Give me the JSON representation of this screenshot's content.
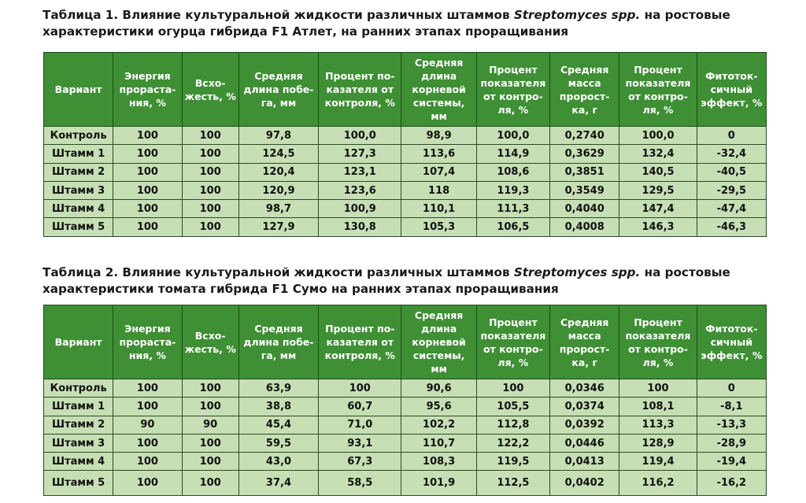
{
  "table1": {
    "caption_pre": "Таблица 1. Влияние культуральной жидкости различных штаммов ",
    "caption_italic": "Streptomyces spp.",
    "caption_post": " на ростовые характеристики огурца гибрида F1 Атлет, на ранних этапах проращивания",
    "headers": [
      "Вариант",
      "Энергия прораста-ния, %",
      "Всхо-жесть, %",
      "Средняя длина побе-га, мм",
      "Процент по-казателя от контроля, %",
      "Средняя длина корневой системы, мм",
      "Процент показателя от контро-ля, %",
      "Средняя масса пророст-ка, г",
      "Процент показателя от контро-ля, %",
      "Фитоток-сичный эффект, %"
    ],
    "rows": [
      [
        "Контроль",
        "100",
        "100",
        "97,8",
        "100,0",
        "98,9",
        "100,0",
        "0,2740",
        "100,0",
        "0"
      ],
      [
        "Штамм 1",
        "100",
        "100",
        "124,5",
        "127,3",
        "113,6",
        "114,9",
        "0,3629",
        "132,4",
        "-32,4"
      ],
      [
        "Штамм 2",
        "100",
        "100",
        "120,4",
        "123,1",
        "107,4",
        "108,6",
        "0,3851",
        "140,5",
        "-40,5"
      ],
      [
        "Штамм 3",
        "100",
        "100",
        "120,9",
        "123,6",
        "118",
        "119,3",
        "0,3549",
        "129,5",
        "-29,5"
      ],
      [
        "Штамм 4",
        "100",
        "100",
        "98,7",
        "100,9",
        "110,1",
        "111,3",
        "0,4040",
        "147,4",
        "-47,4"
      ],
      [
        "Штамм 5",
        "100",
        "100",
        "127,9",
        "130,8",
        "105,3",
        "106,5",
        "0,4008",
        "146,3",
        "-46,3"
      ]
    ]
  },
  "table2": {
    "caption_pre": "Таблица 2. Влияние культуральной жидкости различных штаммов ",
    "caption_italic": "Streptomyces spp.",
    "caption_post": " на ростовые характеристики томата гибрида F1 Сумо на ранних этапах проращивания",
    "headers": [
      "Вариант",
      "Энергия прораста-ния, %",
      "Всхо-жесть, %",
      "Средняя длина побе-га, мм",
      "Процент по-казателя от контроля, %",
      "Средняя длина корневой системы, мм",
      "Процент показателя от контро-ля, %",
      "Средняя масса пророст-ка, г",
      "Процент показателя от контро-ля, %",
      "Фитоток-сичный эффект, %"
    ],
    "rows": [
      [
        "Контроль",
        "100",
        "100",
        "63,9",
        "100",
        "90,6",
        "100",
        "0,0346",
        "100",
        "0"
      ],
      [
        "Штамм 1",
        "100",
        "100",
        "38,8",
        "60,7",
        "95,6",
        "105,5",
        "0,0374",
        "108,1",
        "-8,1"
      ],
      [
        "Штамм 2",
        "90",
        "90",
        "45,4",
        "71,0",
        "102,2",
        "112,8",
        "0,0392",
        "113,3",
        "-13,3"
      ],
      [
        "Штамм 3",
        "100",
        "100",
        "59,5",
        "93,1",
        "110,7",
        "122,2",
        "0,0446",
        "128,9",
        "-28,9"
      ],
      [
        "Штамм 4",
        "100",
        "100",
        "43,0",
        "67,3",
        "108,3",
        "119,5",
        "0,0413",
        "119,4",
        "-19,4"
      ],
      [
        "Штамм 5",
        "100",
        "100",
        "37,4",
        "58,5",
        "101,9",
        "112,5",
        "0,0402",
        "116,2",
        "-16,2"
      ]
    ]
  }
}
